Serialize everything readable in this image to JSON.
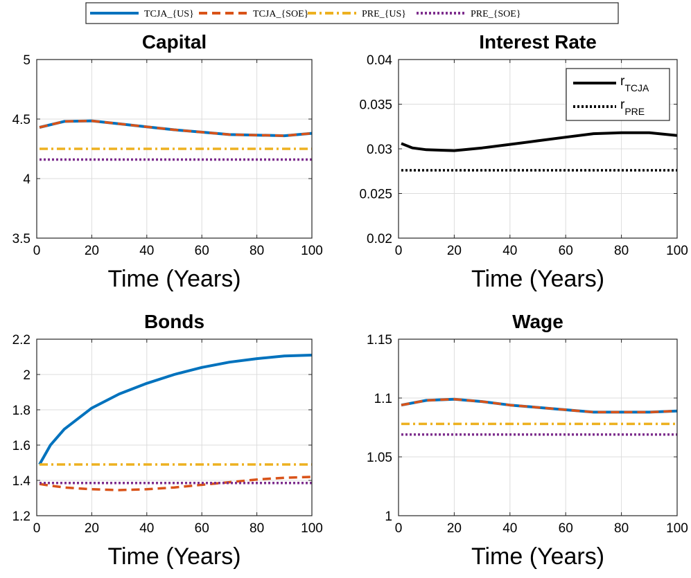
{
  "legend": {
    "entries": [
      {
        "label": "TCJA_{US}",
        "color": "#0072BD",
        "dash": "solid"
      },
      {
        "label": "TCJA_{SOE}",
        "color": "#D95319",
        "dash": "dashed"
      },
      {
        "label": "PRE_{US}",
        "color": "#EDB120",
        "dash": "dashdot"
      },
      {
        "label": "PRE_{SOE}",
        "color": "#7E2F8E",
        "dash": "dotted"
      }
    ]
  },
  "chart_data": [
    {
      "type": "line",
      "title": "Capital",
      "xlabel": "Time (Years)",
      "ylabel": "",
      "xlim": [
        0,
        100
      ],
      "ylim": [
        3.5,
        5
      ],
      "xticks": [
        "0",
        "20",
        "40",
        "60",
        "80",
        "100"
      ],
      "yticks": [
        "3.5",
        "4",
        "4.5",
        "5"
      ],
      "x": [
        1,
        10,
        20,
        30,
        40,
        50,
        60,
        70,
        80,
        90,
        100
      ],
      "series": [
        {
          "name": "TCJA_{US}",
          "color": "#0072BD",
          "style": "solid",
          "values": [
            4.43,
            4.48,
            4.485,
            4.46,
            4.435,
            4.41,
            4.39,
            4.37,
            4.365,
            4.36,
            4.38
          ]
        },
        {
          "name": "TCJA_{SOE}",
          "color": "#D95319",
          "style": "dashed",
          "values": [
            4.43,
            4.48,
            4.485,
            4.46,
            4.435,
            4.41,
            4.39,
            4.37,
            4.365,
            4.36,
            4.38
          ]
        },
        {
          "name": "PRE_{US}",
          "color": "#EDB120",
          "style": "dashdot",
          "values": [
            4.25,
            4.25,
            4.25,
            4.25,
            4.25,
            4.25,
            4.25,
            4.25,
            4.25,
            4.25,
            4.25
          ]
        },
        {
          "name": "PRE_{SOE}",
          "color": "#7E2F8E",
          "style": "dotted",
          "values": [
            4.16,
            4.16,
            4.16,
            4.16,
            4.16,
            4.16,
            4.16,
            4.16,
            4.16,
            4.16,
            4.16
          ]
        }
      ],
      "grid": true
    },
    {
      "type": "line",
      "title": "Interest Rate",
      "xlabel": "Time (Years)",
      "ylabel": "",
      "xlim": [
        0,
        100
      ],
      "ylim": [
        0.02,
        0.04
      ],
      "xticks": [
        "0",
        "20",
        "40",
        "60",
        "80",
        "100"
      ],
      "yticks": [
        "0.02",
        "0.025",
        "0.03",
        "0.035",
        "0.04"
      ],
      "x": [
        1,
        5,
        10,
        20,
        30,
        40,
        50,
        60,
        70,
        80,
        90,
        100
      ],
      "series": [
        {
          "name": "r_TCJA",
          "color": "#000000",
          "style": "solid",
          "values": [
            0.0306,
            0.0301,
            0.0299,
            0.0298,
            0.0301,
            0.0305,
            0.0309,
            0.0313,
            0.0317,
            0.0318,
            0.0318,
            0.0315
          ]
        },
        {
          "name": "r_PRE",
          "color": "#000000",
          "style": "dotted",
          "values": [
            0.0276,
            0.0276,
            0.0276,
            0.0276,
            0.0276,
            0.0276,
            0.0276,
            0.0276,
            0.0276,
            0.0276,
            0.0276,
            0.0276
          ]
        }
      ],
      "inset_legend": {
        "placement": "top-right",
        "entries": [
          {
            "main": "r",
            "sub": "TCJA",
            "style": "solid"
          },
          {
            "main": "r",
            "sub": "PRE",
            "style": "dotted"
          }
        ]
      },
      "grid": true
    },
    {
      "type": "line",
      "title": "Bonds",
      "xlabel": "Time (Years)",
      "ylabel": "",
      "xlim": [
        0,
        100
      ],
      "ylim": [
        1.2,
        2.2
      ],
      "xticks": [
        "0",
        "20",
        "40",
        "60",
        "80",
        "100"
      ],
      "yticks": [
        "1.2",
        "1.4",
        "1.6",
        "1.8",
        "2",
        "2.2"
      ],
      "x": [
        1,
        5,
        10,
        20,
        30,
        40,
        50,
        60,
        70,
        80,
        90,
        100
      ],
      "series": [
        {
          "name": "TCJA_{US}",
          "color": "#0072BD",
          "style": "solid",
          "values": [
            1.49,
            1.6,
            1.69,
            1.81,
            1.89,
            1.95,
            2.0,
            2.04,
            2.07,
            2.09,
            2.105,
            2.11
          ]
        },
        {
          "name": "TCJA_{SOE}",
          "color": "#D95319",
          "style": "dashed",
          "values": [
            1.38,
            1.37,
            1.36,
            1.35,
            1.345,
            1.35,
            1.36,
            1.375,
            1.39,
            1.405,
            1.415,
            1.42
          ]
        },
        {
          "name": "PRE_{US}",
          "color": "#EDB120",
          "style": "dashdot",
          "values": [
            1.49,
            1.49,
            1.49,
            1.49,
            1.49,
            1.49,
            1.49,
            1.49,
            1.49,
            1.49,
            1.49,
            1.49
          ]
        },
        {
          "name": "PRE_{SOE}",
          "color": "#7E2F8E",
          "style": "dotted",
          "values": [
            1.385,
            1.385,
            1.385,
            1.385,
            1.385,
            1.385,
            1.385,
            1.385,
            1.385,
            1.385,
            1.385,
            1.385
          ]
        }
      ],
      "grid": true
    },
    {
      "type": "line",
      "title": "Wage",
      "xlabel": "Time (Years)",
      "ylabel": "",
      "xlim": [
        0,
        100
      ],
      "ylim": [
        1,
        1.15
      ],
      "xticks": [
        "0",
        "20",
        "40",
        "60",
        "80",
        "100"
      ],
      "yticks": [
        "1",
        "1.05",
        "1.1",
        "1.15"
      ],
      "x": [
        1,
        10,
        20,
        30,
        40,
        50,
        60,
        70,
        80,
        90,
        100
      ],
      "series": [
        {
          "name": "TCJA_{US}",
          "color": "#0072BD",
          "style": "solid",
          "values": [
            1.094,
            1.098,
            1.099,
            1.097,
            1.094,
            1.092,
            1.09,
            1.088,
            1.088,
            1.088,
            1.089
          ]
        },
        {
          "name": "TCJA_{SOE}",
          "color": "#D95319",
          "style": "dashed",
          "values": [
            1.094,
            1.098,
            1.099,
            1.097,
            1.094,
            1.092,
            1.09,
            1.088,
            1.088,
            1.088,
            1.089
          ]
        },
        {
          "name": "PRE_{US}",
          "color": "#EDB120",
          "style": "dashdot",
          "values": [
            1.078,
            1.078,
            1.078,
            1.078,
            1.078,
            1.078,
            1.078,
            1.078,
            1.078,
            1.078,
            1.078
          ]
        },
        {
          "name": "PRE_{SOE}",
          "color": "#7E2F8E",
          "style": "dotted",
          "values": [
            1.069,
            1.069,
            1.069,
            1.069,
            1.069,
            1.069,
            1.069,
            1.069,
            1.069,
            1.069,
            1.069
          ]
        }
      ],
      "grid": true
    }
  ]
}
